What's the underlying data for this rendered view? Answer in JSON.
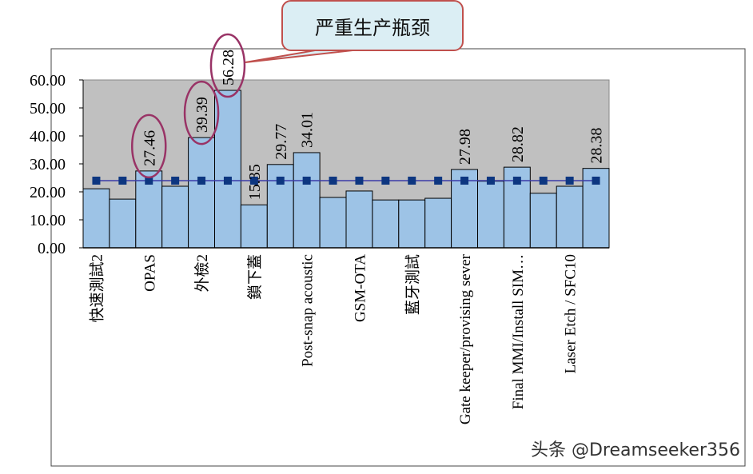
{
  "chart_data": {
    "type": "bar",
    "title": "",
    "xlabel": "",
    "ylabel": "",
    "ylim": [
      0,
      60
    ],
    "yticks": [
      "0.00",
      "10.00",
      "20.00",
      "30.00",
      "40.00",
      "50.00",
      "60.00"
    ],
    "grid": false,
    "categories": [
      "快速測試2",
      "",
      "OPAS",
      "",
      "外檢2",
      "",
      "鎖下蓋",
      "",
      "Post-snap acoustic",
      "",
      "GSM-OTA",
      "",
      "藍牙測試",
      "",
      "Gate keeper/provising sever",
      "",
      "Final MMI/Install SIM…",
      "",
      "Laser Etch / SFC10",
      ""
    ],
    "values": [
      21.1,
      17.4,
      27.46,
      22.0,
      39.39,
      56.28,
      15.35,
      29.77,
      34.01,
      18.0,
      20.3,
      17.1,
      17.1,
      17.7,
      27.98,
      23.8,
      28.82,
      19.5,
      22.0,
      28.38
    ],
    "data_labels": [
      "",
      "",
      "27.46",
      "",
      "39.39",
      "56.28",
      "15.35",
      "29.77",
      "34.01",
      "",
      "",
      "",
      "",
      "",
      "27.98",
      "",
      "28.82",
      "",
      "",
      "28.38"
    ],
    "reference_line": {
      "type": "line",
      "value": 24.0,
      "marker": "square"
    },
    "highlighted": [
      "27.46",
      "39.39",
      "56.28"
    ],
    "colors": {
      "bar": "#9dc3e6",
      "plot_bg": "#c0c0c0",
      "line": "#3a3aa8",
      "marker": "#0d3680",
      "ellipse": "#993366",
      "callout_border": "#c0504d",
      "callout_fill": "#dbeef4"
    }
  },
  "callout": {
    "text": "严重生产瓶颈"
  },
  "watermark": "头条 @Dreamseeker356"
}
